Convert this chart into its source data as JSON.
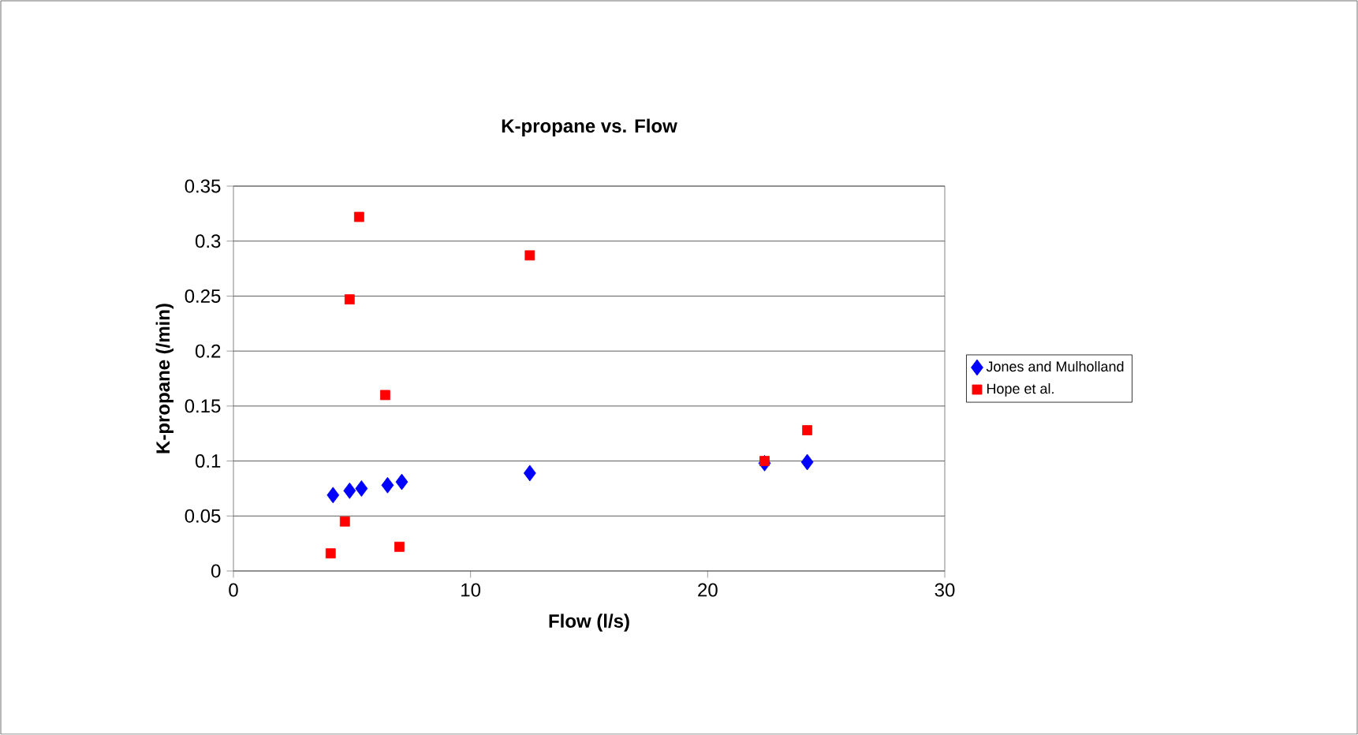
{
  "chart_data": {
    "type": "scatter",
    "title": "K-propane vs. Flow",
    "xlabel": "Flow (l/s)",
    "ylabel": "K-propane (/min)",
    "xlim": [
      0,
      30
    ],
    "xticks": [
      0,
      10,
      20,
      30
    ],
    "ylim": [
      0,
      0.35
    ],
    "yticks": [
      0,
      0.05,
      0.1,
      0.15,
      0.2,
      0.25,
      0.3,
      0.35
    ],
    "grid": "y",
    "legend": "right",
    "series": [
      {
        "name": "Jones and Mulholland",
        "color": "#0000ff",
        "marker": "diamond",
        "x": [
          4.2,
          4.9,
          5.4,
          6.5,
          7.1,
          12.5,
          22.4,
          24.2
        ],
        "values": [
          0.069,
          0.073,
          0.075,
          0.078,
          0.081,
          0.089,
          0.098,
          0.099
        ]
      },
      {
        "name": "Hope et al.",
        "color": "#ff0000",
        "marker": "square",
        "x": [
          4.1,
          4.7,
          4.9,
          5.3,
          6.4,
          7.0,
          12.5,
          22.4,
          24.2
        ],
        "values": [
          0.016,
          0.045,
          0.247,
          0.322,
          0.16,
          0.022,
          0.287,
          0.1,
          0.128
        ]
      }
    ]
  }
}
